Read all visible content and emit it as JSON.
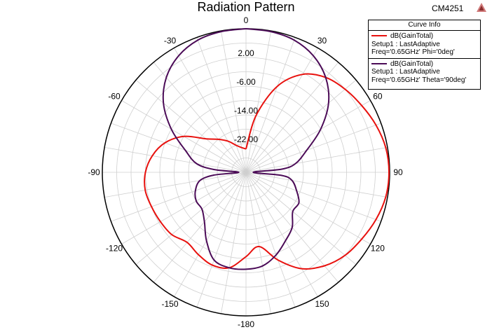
{
  "header": {
    "title": "Radiation Pattern",
    "project_id": "CM4251"
  },
  "legend": {
    "title": "Curve Info",
    "entries": [
      {
        "name": "dB(GainTotal)",
        "setup": "Setup1 : LastAdaptive",
        "condition": "Freq='0.65GHz' Phi='0deg'",
        "color": "#e8110e"
      },
      {
        "name": "dB(GainTotal)",
        "setup": "Setup1 : LastAdaptive",
        "condition": "Freq='0.65GHz' Theta='90deg'",
        "color": "#4b0b57"
      }
    ]
  },
  "chart_data": {
    "type": "polar-line",
    "angle_ticks": [
      {
        "label": "0",
        "angle": 0
      },
      {
        "label": "30",
        "angle": 30
      },
      {
        "label": "60",
        "angle": 60
      },
      {
        "label": "90",
        "angle": 90
      },
      {
        "label": "120",
        "angle": 120
      },
      {
        "label": "150",
        "angle": 150
      },
      {
        "label": "-180",
        "angle": 180
      },
      {
        "label": "-150",
        "angle": -150
      },
      {
        "label": "-120",
        "angle": -120
      },
      {
        "label": "-90",
        "angle": -90
      },
      {
        "label": "-60",
        "angle": -60
      },
      {
        "label": "-30",
        "angle": -30
      }
    ],
    "radial_ticks": [
      {
        "label": "2.00",
        "value": 2
      },
      {
        "label": "-6.00",
        "value": -6
      },
      {
        "label": "-14.00",
        "value": -14
      },
      {
        "label": "-22.00",
        "value": -22
      }
    ],
    "radial_range": [
      -30,
      10
    ],
    "radial_grid_values": [
      -26,
      -22,
      -18,
      -14,
      -10,
      -6,
      -2,
      2,
      6,
      10
    ],
    "angle_grid_step": 10,
    "series": [
      {
        "name": "dB(GainTotal)",
        "points": [
          [
            0,
            -23.5
          ],
          [
            10,
            -14
          ],
          [
            20,
            -4.5
          ],
          [
            30,
            1.5
          ],
          [
            40,
            4.5
          ],
          [
            50,
            6
          ],
          [
            60,
            7.2
          ],
          [
            70,
            8.5
          ],
          [
            80,
            9.5
          ],
          [
            90,
            9.8
          ],
          [
            100,
            9.5
          ],
          [
            110,
            8.5
          ],
          [
            120,
            7.2
          ],
          [
            130,
            6
          ],
          [
            140,
            4
          ],
          [
            150,
            1
          ],
          [
            160,
            -4
          ],
          [
            170,
            -9
          ],
          [
            180,
            -6.5
          ],
          [
            -170,
            -3
          ],
          [
            -160,
            -2.5
          ],
          [
            -150,
            -3.5
          ],
          [
            -140,
            -4.5
          ],
          [
            -130,
            -3
          ],
          [
            -120,
            -2.5
          ],
          [
            -110,
            -2
          ],
          [
            -100,
            -1.5
          ],
          [
            -90,
            -2
          ],
          [
            -80,
            -3.5
          ],
          [
            -70,
            -6
          ],
          [
            -60,
            -10
          ],
          [
            -50,
            -15.5
          ],
          [
            -40,
            -18
          ],
          [
            -30,
            -20
          ],
          [
            -20,
            -22
          ],
          [
            -10,
            -23
          ],
          [
            0,
            -23.5
          ]
        ]
      },
      {
        "name": "dB(GainTotal)",
        "points": [
          [
            0,
            10
          ],
          [
            10,
            9.8
          ],
          [
            20,
            9.2
          ],
          [
            30,
            7.5
          ],
          [
            40,
            4.5
          ],
          [
            50,
            0
          ],
          [
            60,
            -6
          ],
          [
            70,
            -12
          ],
          [
            80,
            -16
          ],
          [
            85,
            -20
          ],
          [
            90,
            -28
          ],
          [
            95,
            -20
          ],
          [
            100,
            -17
          ],
          [
            110,
            -15
          ],
          [
            120,
            -13
          ],
          [
            130,
            -13
          ],
          [
            140,
            -10
          ],
          [
            150,
            -8
          ],
          [
            160,
            -5.5
          ],
          [
            170,
            -3.5
          ],
          [
            180,
            -3
          ],
          [
            -170,
            -3
          ],
          [
            -160,
            -4
          ],
          [
            -150,
            -8
          ],
          [
            -140,
            -12
          ],
          [
            -130,
            -14
          ],
          [
            -120,
            -14
          ],
          [
            -110,
            -15
          ],
          [
            -100,
            -17
          ],
          [
            -95,
            -21
          ],
          [
            -90,
            -28
          ],
          [
            -85,
            -21
          ],
          [
            -80,
            -16
          ],
          [
            -70,
            -12
          ],
          [
            -60,
            -6
          ],
          [
            -50,
            0
          ],
          [
            -40,
            4.5
          ],
          [
            -30,
            7.5
          ],
          [
            -20,
            9.2
          ],
          [
            -10,
            9.8
          ],
          [
            0,
            10
          ]
        ]
      }
    ]
  }
}
